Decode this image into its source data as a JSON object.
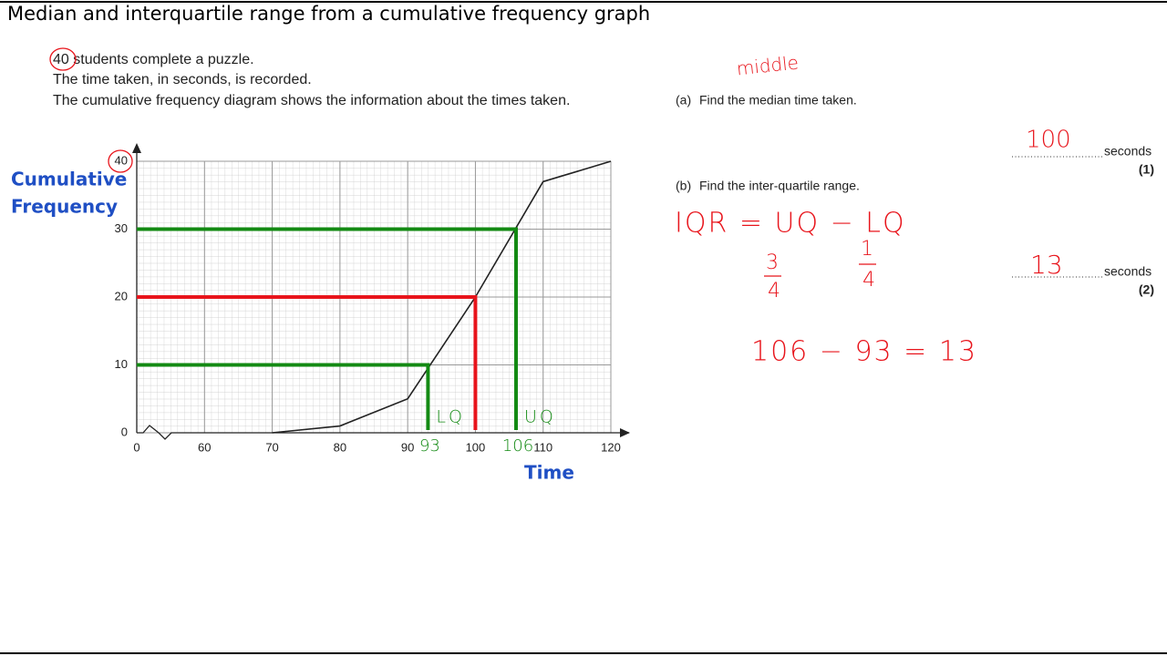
{
  "header": {
    "title": "Median and interquartile range from a cumulative frequency graph"
  },
  "question": {
    "intro": [
      "40 students complete a puzzle.",
      "The time taken, in seconds, is recorded.",
      "The cumulative frequency diagram shows the information about the times taken."
    ],
    "parts": [
      {
        "label": "(a)",
        "text": "Find the median time taken.",
        "answer": "100",
        "unit": "seconds",
        "marks": "(1)"
      },
      {
        "label": "(b)",
        "text": "Find the inter-quartile range.",
        "answer": "13",
        "unit": "seconds",
        "marks": "(2)"
      }
    ]
  },
  "notes": {
    "middle": "middle",
    "formula": "IQR = UQ − LQ",
    "upper_fraction": [
      "3",
      "4"
    ],
    "lower_fraction": [
      "1",
      "4"
    ],
    "working": "106 − 93 = 13"
  },
  "chart_data": {
    "type": "line",
    "x": [
      70,
      80,
      90,
      100,
      110,
      120
    ],
    "values": [
      0,
      1,
      5,
      20,
      37,
      40
    ],
    "color": "#222222",
    "xlabel": "Time",
    "ylabel": [
      "Cumulative",
      "Frequency"
    ],
    "xlim": [
      0,
      120
    ],
    "xticks": [
      0,
      60,
      70,
      80,
      90,
      100,
      110,
      120
    ],
    "ylim": [
      0,
      40
    ],
    "yticks": [
      0,
      10,
      20,
      30,
      40
    ],
    "grid": true,
    "axis_break": true,
    "guides": [
      {
        "x": 93,
        "y": 10,
        "color": "#138a13",
        "label": "LQ"
      },
      {
        "x": 100,
        "y": 20,
        "color": "#e8141b"
      },
      {
        "x": 106,
        "y": 30,
        "color": "#138a13",
        "label": "UQ"
      }
    ]
  }
}
